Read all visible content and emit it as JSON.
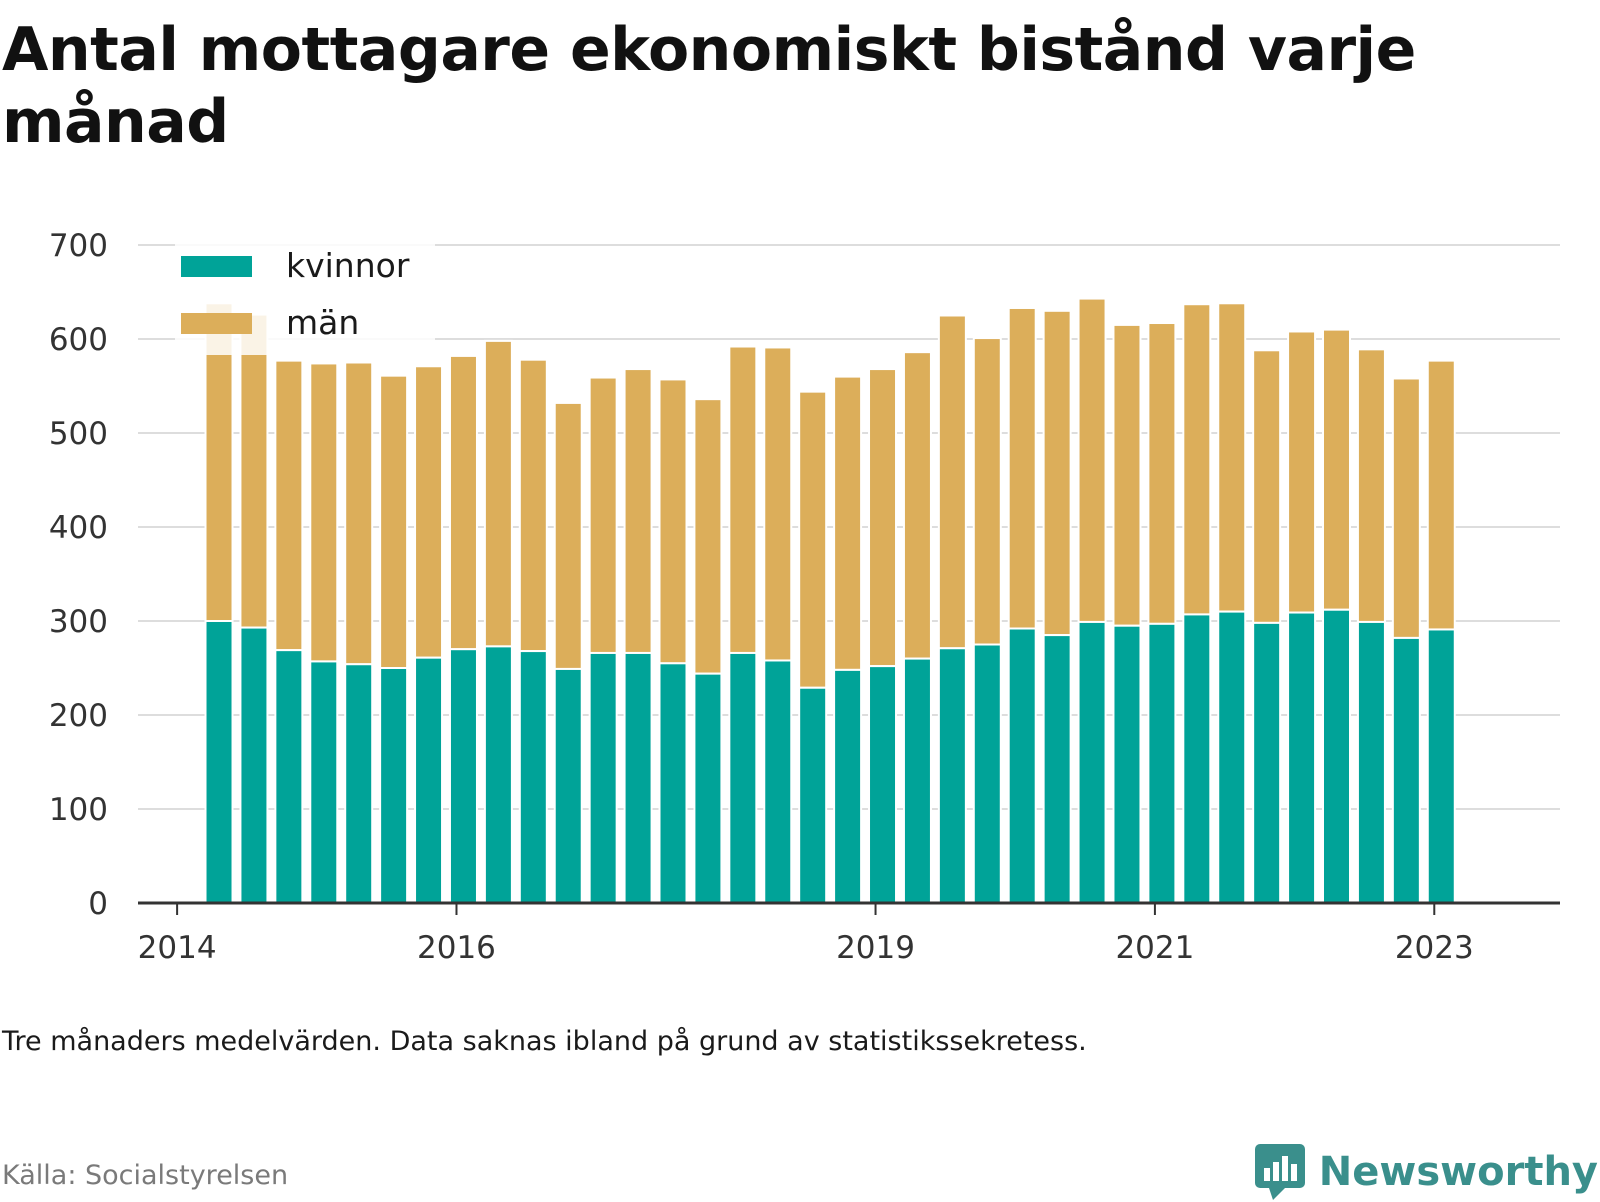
{
  "title": "Antal mottagare ekonomiskt bistånd varje månad",
  "note": "Tre månaders medelvärden. Data saknas ibland på grund av statistikssekretess.",
  "source": "Källa: Socialstyrelsen",
  "brand": {
    "name": "Newsworthy",
    "icon": "bar-chart-speech-bubble-icon",
    "color": "#3a8f8c"
  },
  "colors": {
    "kvinnor": "#00a398",
    "man": "#dcae5a",
    "grid": "#dddddd",
    "axis": "#333333"
  },
  "chart_data": {
    "type": "bar",
    "stacked": true,
    "legend_position": "top-left",
    "grid": true,
    "ylim": [
      0,
      700
    ],
    "yticks": [
      "0",
      "100",
      "200",
      "300",
      "400",
      "500",
      "600",
      "700"
    ],
    "xticks": [
      {
        "label": "2014",
        "at": 2014.0
      },
      {
        "label": "2016",
        "at": 2016.0
      },
      {
        "label": "2019",
        "at": 2019.0
      },
      {
        "label": "2021",
        "at": 2021.0
      },
      {
        "label": "2023",
        "at": 2023.0
      }
    ],
    "x": [
      2014.3,
      2014.55,
      2014.8,
      2015.05,
      2015.3,
      2015.55,
      2015.8,
      2016.05,
      2016.3,
      2016.55,
      2016.8,
      2017.05,
      2017.3,
      2017.55,
      2017.8,
      2018.05,
      2018.3,
      2018.55,
      2018.8,
      2019.05,
      2019.3,
      2019.55,
      2019.8,
      2020.05,
      2020.3,
      2020.55,
      2020.8,
      2021.05,
      2021.3,
      2021.55,
      2021.8,
      2022.05,
      2022.3,
      2022.55,
      2022.8,
      2023.05
    ],
    "series": [
      {
        "name": "kvinnor",
        "values": [
          300,
          293,
          269,
          257,
          254,
          250,
          261,
          270,
          273,
          268,
          249,
          266,
          266,
          255,
          244,
          266,
          258,
          229,
          248,
          252,
          260,
          271,
          275,
          292,
          285,
          299,
          295,
          297,
          307,
          310,
          298,
          309,
          312,
          299,
          282,
          291
        ]
      },
      {
        "name": "män",
        "values": [
          338,
          333,
          308,
          317,
          321,
          311,
          310,
          312,
          325,
          310,
          283,
          293,
          302,
          302,
          292,
          326,
          333,
          315,
          312,
          316,
          326,
          354,
          326,
          341,
          345,
          344,
          320,
          320,
          330,
          328,
          290,
          299,
          298,
          290,
          276,
          286
        ]
      }
    ]
  }
}
